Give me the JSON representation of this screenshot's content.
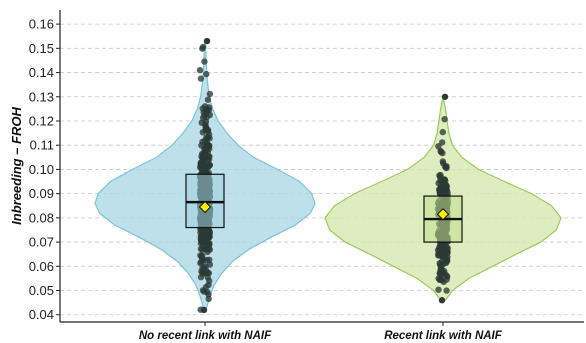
{
  "chart_data": {
    "type": "violin",
    "ylabel": "Inbreeding – FROH",
    "xlabel": "",
    "ylim": [
      0.037,
      0.165
    ],
    "yticks": [
      0.04,
      0.05,
      0.06,
      0.07,
      0.08,
      0.09,
      0.1,
      0.11,
      0.12,
      0.13,
      0.14,
      0.15,
      0.16
    ],
    "ytick_labels": [
      "0.04",
      "0.05",
      "0.06",
      "0.07",
      "0.08",
      "0.09",
      "0.10",
      "0.11",
      "0.12",
      "0.13",
      "0.14",
      "0.15",
      "0.16"
    ],
    "grid": "horizontal dashed",
    "categories": [
      "No recent link with NAIF",
      "Recent link with NAIF"
    ],
    "groups": [
      {
        "name": "No recent link with NAIF",
        "fill_color": "#add8e6",
        "outline_color": "#7cc4d3",
        "box_fill": "#9fd0dc",
        "box": {
          "q1": 0.076,
          "median": 0.0865,
          "q3": 0.098
        },
        "mean": 0.0845,
        "min": 0.042,
        "max": 0.153,
        "density": [
          [
            0.042,
            0.01
          ],
          [
            0.047,
            0.04
          ],
          [
            0.052,
            0.08
          ],
          [
            0.057,
            0.15
          ],
          [
            0.062,
            0.25
          ],
          [
            0.067,
            0.4
          ],
          [
            0.072,
            0.6
          ],
          [
            0.077,
            0.82
          ],
          [
            0.082,
            0.96
          ],
          [
            0.086,
            1.0
          ],
          [
            0.09,
            0.97
          ],
          [
            0.095,
            0.86
          ],
          [
            0.1,
            0.66
          ],
          [
            0.105,
            0.44
          ],
          [
            0.11,
            0.3
          ],
          [
            0.115,
            0.2
          ],
          [
            0.12,
            0.12
          ],
          [
            0.125,
            0.07
          ],
          [
            0.13,
            0.04
          ],
          [
            0.135,
            0.025
          ],
          [
            0.14,
            0.015
          ],
          [
            0.145,
            0.01
          ],
          [
            0.15,
            0.005
          ],
          [
            0.153,
            0.0
          ]
        ]
      },
      {
        "name": "Recent link with NAIF",
        "fill_color": "#d5e8b0",
        "outline_color": "#9dc95a",
        "box_fill": "#c2df8c",
        "box": {
          "q1": 0.07,
          "median": 0.0795,
          "q3": 0.089
        },
        "mean": 0.0815,
        "min": 0.046,
        "max": 0.13,
        "density": [
          [
            0.046,
            0.02
          ],
          [
            0.05,
            0.08
          ],
          [
            0.055,
            0.22
          ],
          [
            0.06,
            0.42
          ],
          [
            0.065,
            0.62
          ],
          [
            0.07,
            0.83
          ],
          [
            0.075,
            0.96
          ],
          [
            0.08,
            1.0
          ],
          [
            0.085,
            0.92
          ],
          [
            0.09,
            0.75
          ],
          [
            0.095,
            0.52
          ],
          [
            0.1,
            0.3
          ],
          [
            0.105,
            0.16
          ],
          [
            0.11,
            0.08
          ],
          [
            0.115,
            0.05
          ],
          [
            0.12,
            0.035
          ],
          [
            0.125,
            0.02
          ],
          [
            0.13,
            0.0
          ]
        ]
      }
    ]
  }
}
